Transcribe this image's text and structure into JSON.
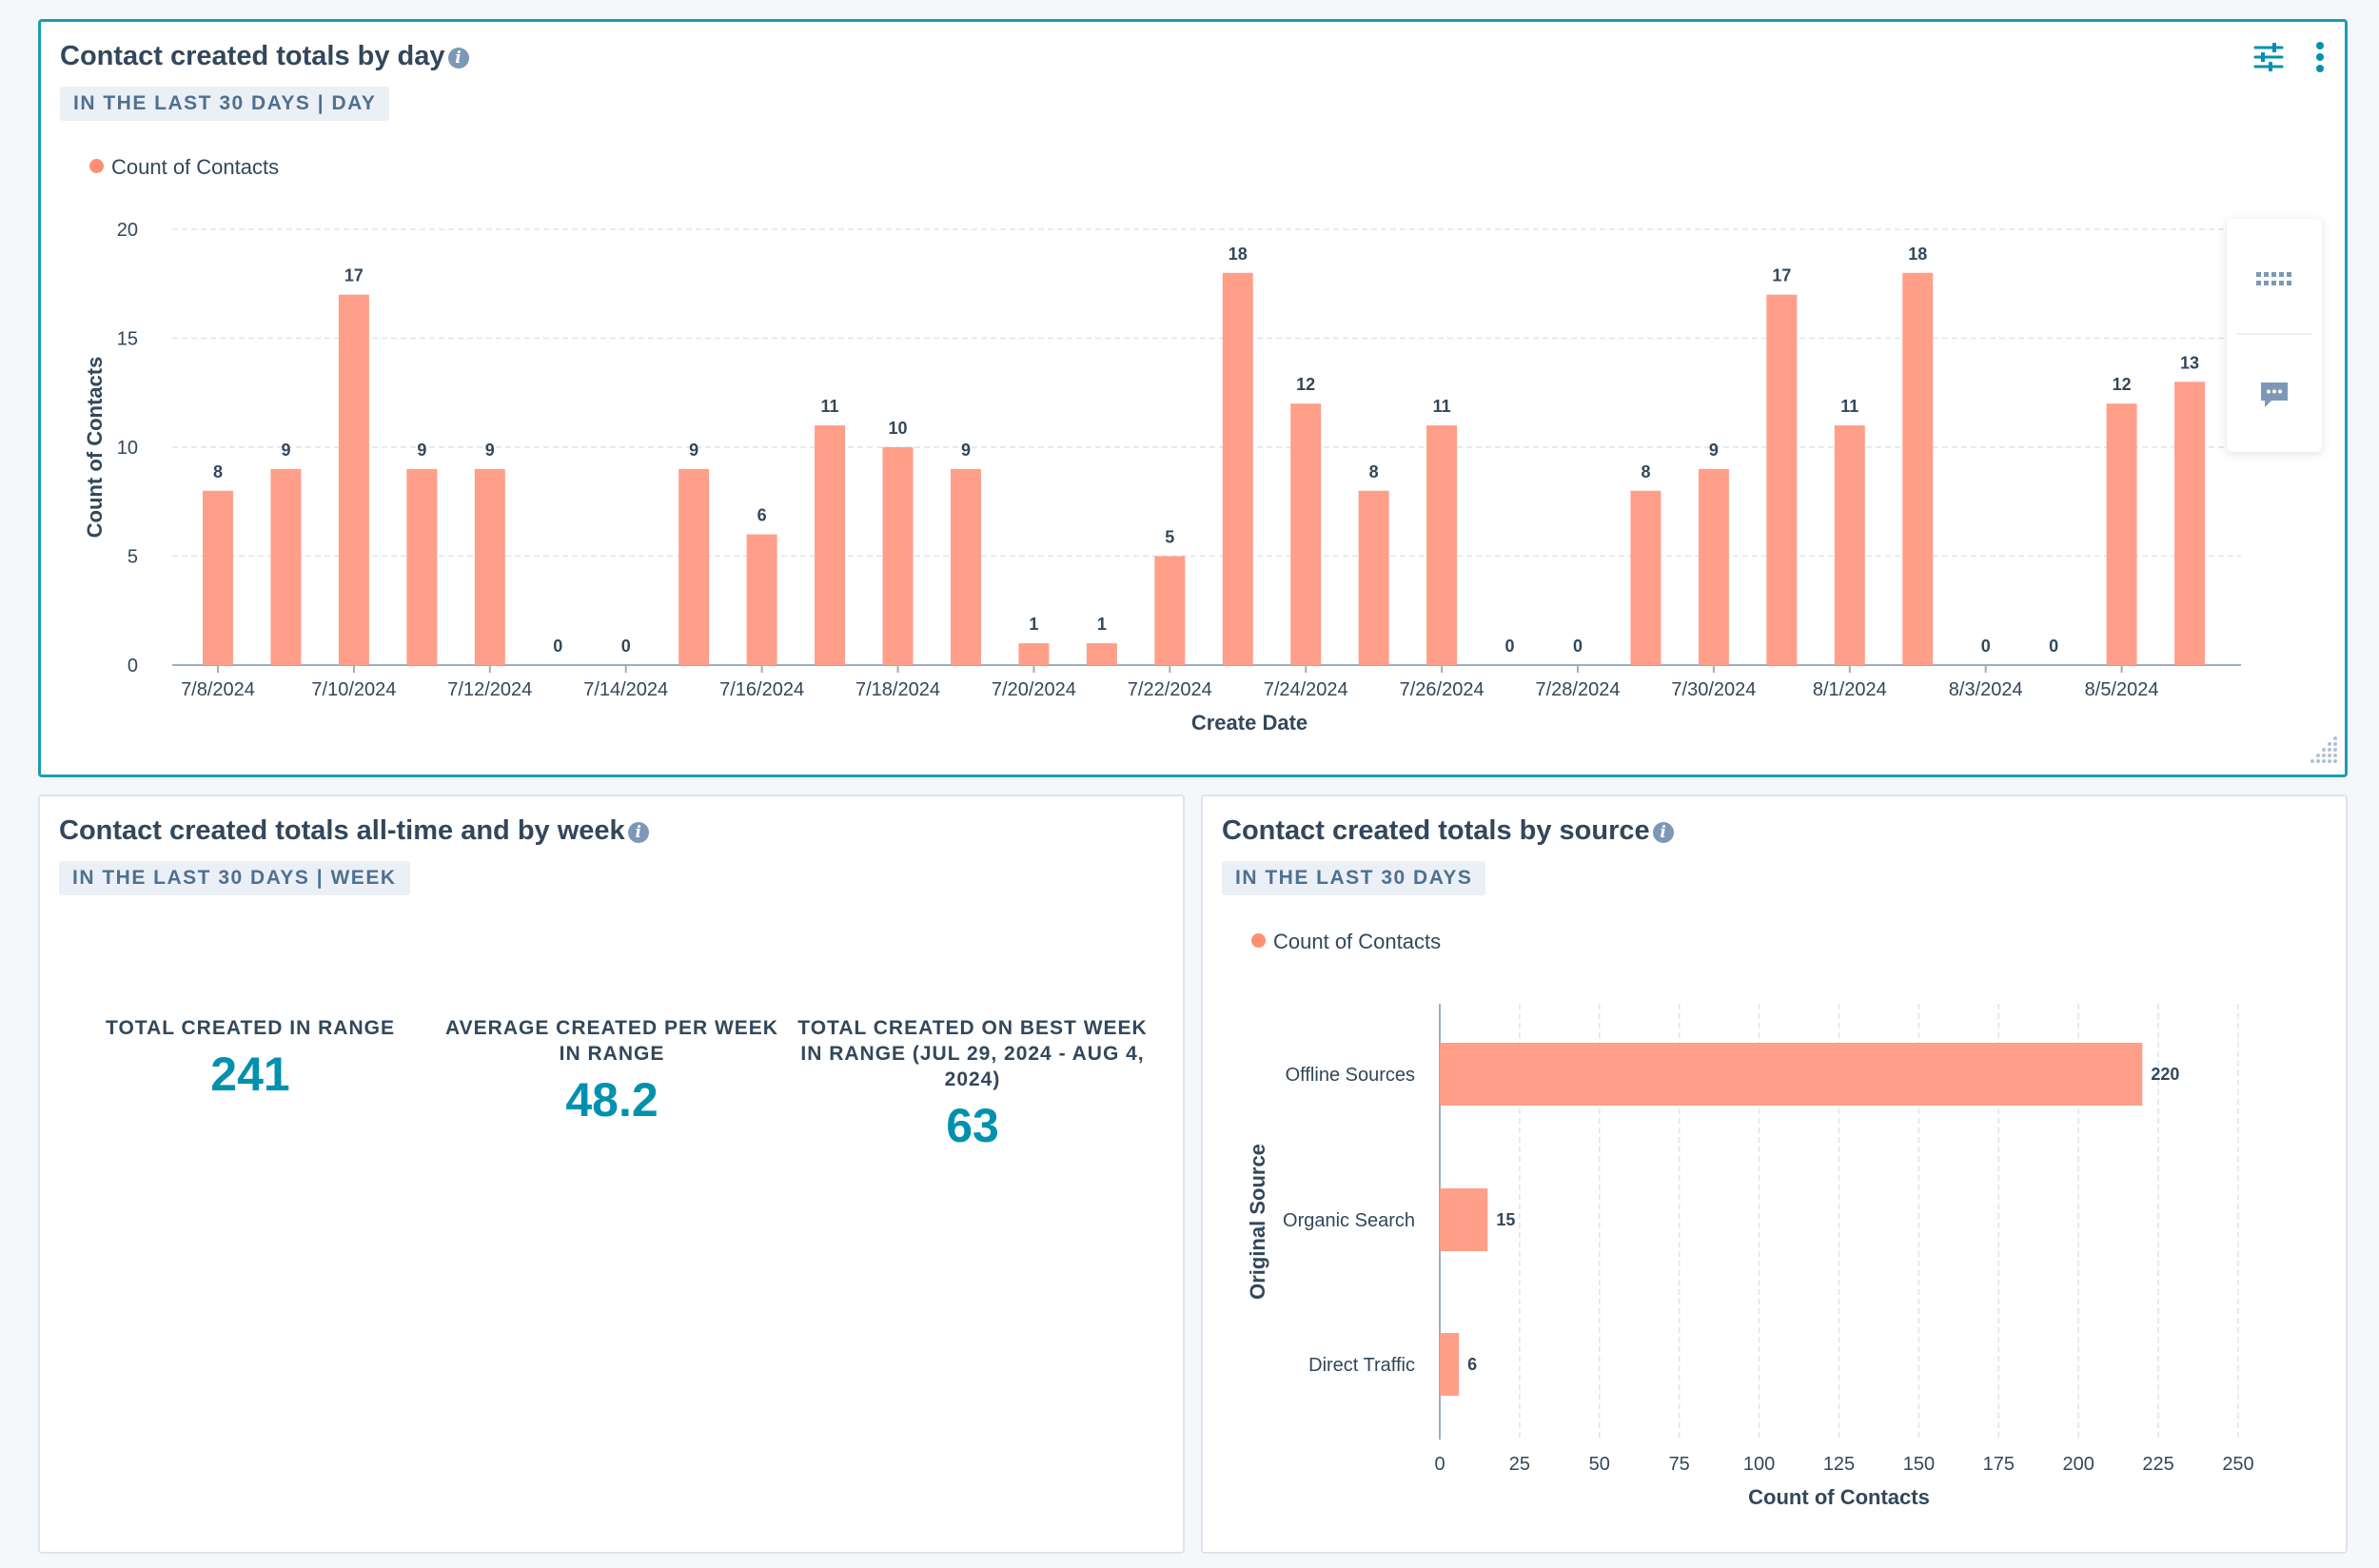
{
  "day_card": {
    "title": "Contact created totals by day",
    "tag": "IN THE LAST 30 DAYS | DAY",
    "legend": "Count of Contacts",
    "icons": [
      "filter-sliders-icon",
      "more-vertical-icon",
      "info-icon",
      "resize-grip-icon"
    ]
  },
  "side_panel": {
    "icons": [
      "keyboard-icon",
      "chat-icon"
    ]
  },
  "week_card": {
    "title": "Contact created totals all-time and by week",
    "tag": "IN THE LAST 30 DAYS | WEEK",
    "kpis": [
      {
        "label": "TOTAL CREATED IN RANGE",
        "value": "241"
      },
      {
        "label": "AVERAGE CREATED PER WEEK IN RANGE",
        "value": "48.2"
      },
      {
        "label": "TOTAL CREATED ON BEST WEEK IN RANGE (JUL 29, 2024 - AUG 4, 2024)",
        "value": "63"
      }
    ]
  },
  "source_card": {
    "title": "Contact created totals by source",
    "tag": "IN THE LAST 30 DAYS",
    "legend": "Count of Contacts"
  },
  "colors": {
    "bar": "#ff9f89",
    "accent": "#1c9cb2",
    "kpi_value": "#0091ae",
    "text": "#33475b"
  },
  "chart_data": [
    {
      "type": "bar",
      "title": "Contact created totals by day",
      "xlabel": "Create Date",
      "ylabel": "Count of Contacts",
      "ylim": [
        0,
        20
      ],
      "yticks": [
        0,
        5,
        10,
        15,
        20
      ],
      "grid": true,
      "legend": "top-left",
      "series": [
        {
          "name": "Count of Contacts"
        }
      ],
      "tick_labels": [
        "7/8/2024",
        "7/10/2024",
        "7/12/2024",
        "7/14/2024",
        "7/16/2024",
        "7/18/2024",
        "7/20/2024",
        "7/22/2024",
        "7/24/2024",
        "7/26/2024",
        "7/28/2024",
        "7/30/2024",
        "8/1/2024",
        "8/3/2024",
        "8/5/2024"
      ],
      "categories": [
        "7/8/2024",
        "7/9/2024",
        "7/10/2024",
        "7/11/2024",
        "7/12/2024",
        "7/13/2024",
        "7/14/2024",
        "7/15/2024",
        "7/16/2024",
        "7/17/2024",
        "7/18/2024",
        "7/19/2024",
        "7/20/2024",
        "7/21/2024",
        "7/22/2024",
        "7/23/2024",
        "7/24/2024",
        "7/25/2024",
        "7/26/2024",
        "7/27/2024",
        "7/28/2024",
        "7/29/2024",
        "7/30/2024",
        "7/31/2024",
        "8/1/2024",
        "8/2/2024",
        "8/3/2024",
        "8/4/2024",
        "8/5/2024",
        "8/6/2024"
      ],
      "values": [
        8,
        9,
        17,
        9,
        9,
        0,
        0,
        9,
        6,
        11,
        10,
        9,
        1,
        1,
        5,
        18,
        12,
        8,
        11,
        0,
        0,
        8,
        9,
        17,
        11,
        18,
        0,
        0,
        12,
        13
      ]
    },
    {
      "type": "bar",
      "orientation": "horizontal",
      "title": "Contact created totals by source",
      "xlabel": "Count of Contacts",
      "ylabel": "Original Source",
      "xlim": [
        0,
        250
      ],
      "xticks": [
        0,
        25,
        50,
        75,
        100,
        125,
        150,
        175,
        200,
        225,
        250
      ],
      "grid": true,
      "legend": "top-left",
      "series": [
        {
          "name": "Count of Contacts"
        }
      ],
      "categories": [
        "Offline Sources",
        "Organic Search",
        "Direct Traffic"
      ],
      "values": [
        220,
        15,
        6
      ]
    }
  ]
}
